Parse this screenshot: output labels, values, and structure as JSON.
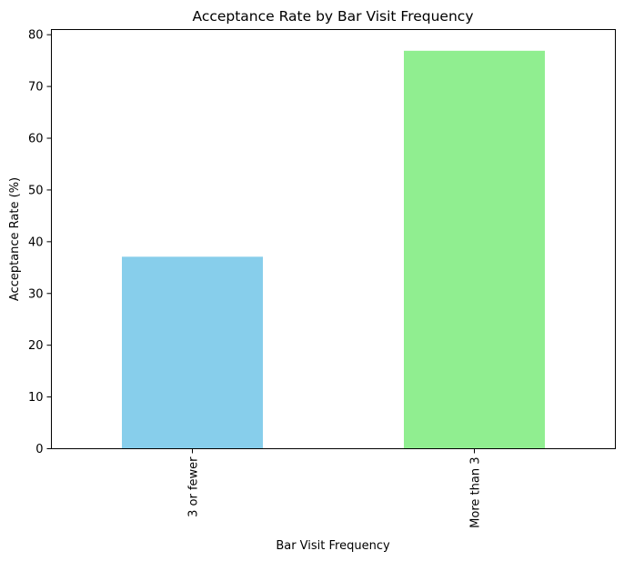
{
  "chart_data": {
    "type": "bar",
    "title": "Acceptance Rate by Bar Visit Frequency",
    "xlabel": "Bar Visit Frequency",
    "ylabel": "Acceptance Rate (%)",
    "categories": [
      "3 or fewer",
      "More than 3"
    ],
    "values": [
      37.1,
      76.9
    ],
    "colors": [
      "#87ceeb",
      "#90ee90"
    ],
    "ylim": [
      0,
      81
    ],
    "yticks": [
      0,
      10,
      20,
      30,
      40,
      50,
      60,
      70,
      80
    ],
    "grid": false,
    "legend": "none"
  }
}
